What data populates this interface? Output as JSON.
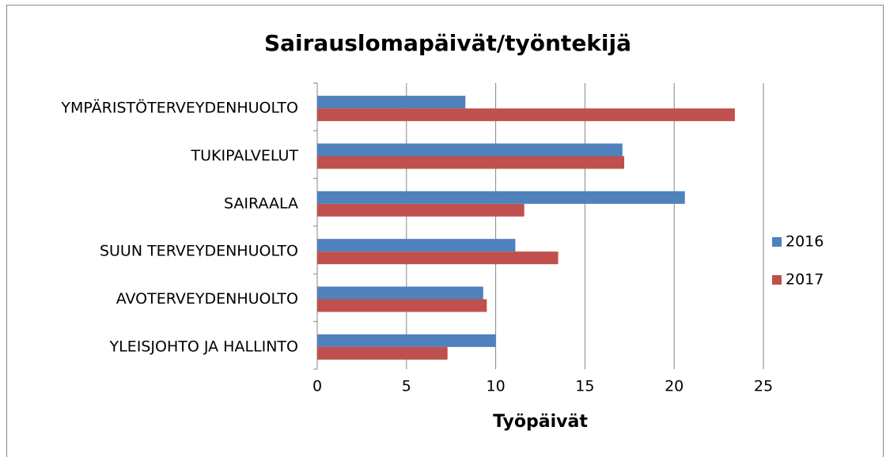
{
  "chart_data": {
    "type": "barh",
    "title": "Sairauslomapäivät/työntekijä",
    "xlabel": "Työpäivät",
    "categories": [
      "YMPÄRISTÖTERVEYDENHUOLTO",
      "TUKIPALVELUT",
      "SAIRAALA",
      "SUUN TERVEYDENHUOLTO",
      "AVOTERVEYDENHUOLTO",
      "YLEISJOHTO JA HALLINTO"
    ],
    "series": [
      {
        "name": "2016",
        "color": "#4f81bd",
        "values": [
          8.3,
          17.1,
          20.6,
          11.1,
          9.3,
          10.0
        ]
      },
      {
        "name": "2017",
        "color": "#c0504d",
        "values": [
          23.4,
          17.2,
          11.6,
          13.5,
          9.5,
          7.3
        ]
      }
    ],
    "xlim": [
      0,
      25
    ],
    "xticks": [
      0,
      5,
      10,
      15,
      20,
      25
    ],
    "grid": true,
    "legend": "right"
  }
}
